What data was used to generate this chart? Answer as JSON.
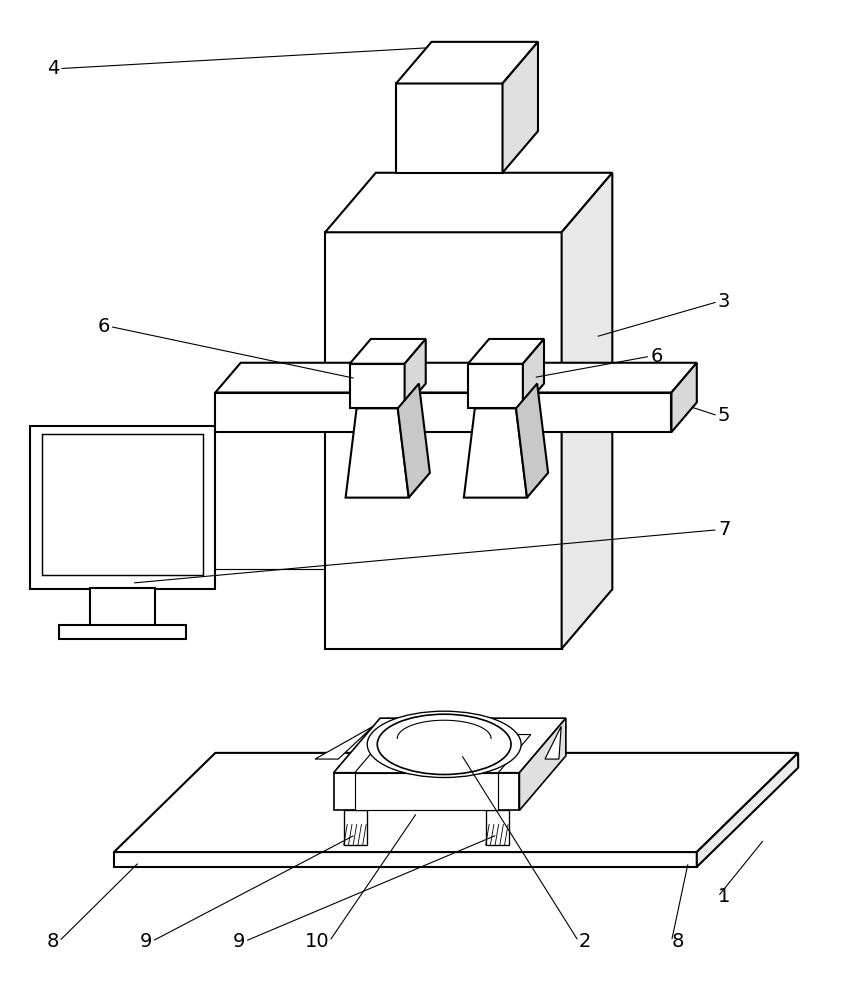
{
  "bg_color": "#ffffff",
  "line_color": "#000000",
  "line_width": 1.5,
  "figure_width": 8.53,
  "figure_height": 10.0,
  "label_fontsize": 14
}
